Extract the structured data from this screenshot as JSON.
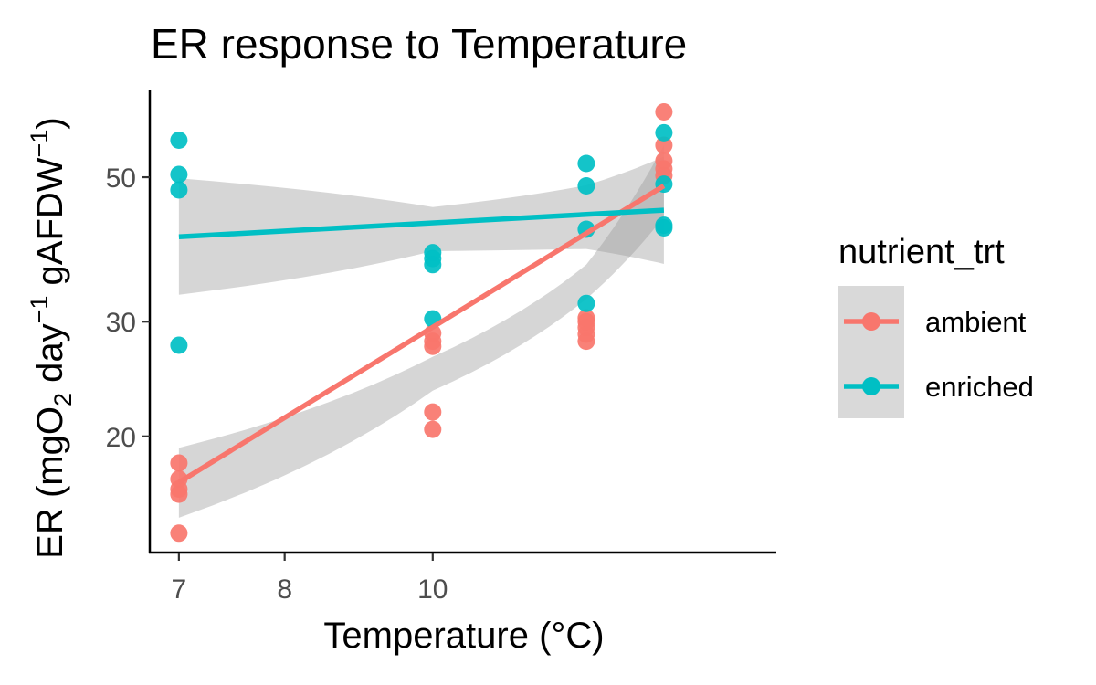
{
  "chart_data": {
    "type": "scatter",
    "title": "ER response to Temperature",
    "xlabel": "Temperature (°C)",
    "ylabel_parts": {
      "prefix": "ER (mgO",
      "sub": "2",
      "mid1": " day",
      "sup1": "−1",
      "mid2": " gAFDW",
      "sup2": "−1",
      "suffix": ")"
    },
    "x_scale": "reciprocal",
    "y_scale": "log",
    "xlim": [
      6.9,
      16.5
    ],
    "ylim": [
      12.6,
      73
    ],
    "x_ticks": [
      7,
      8,
      10
    ],
    "x_tick_labels": [
      "7",
      "8",
      "10"
    ],
    "y_ticks": [
      20,
      30,
      50
    ],
    "y_tick_labels": [
      "20",
      "30",
      "50"
    ],
    "grid": false,
    "legend": {
      "title": "nutrient_trt",
      "placement": "right",
      "entries": [
        "ambient",
        "enriched"
      ]
    },
    "series": [
      {
        "name": "ambient",
        "color": "#F8766D",
        "points": [
          [
            7,
            14.2
          ],
          [
            7,
            18.2
          ],
          [
            7,
            17.2
          ],
          [
            7,
            16.6
          ],
          [
            7,
            16.3
          ],
          [
            10,
            20.5
          ],
          [
            10,
            21.8
          ],
          [
            10,
            27.5
          ],
          [
            10,
            28.0
          ],
          [
            10,
            28.8
          ],
          [
            13.5,
            28.0
          ],
          [
            13.5,
            28.7
          ],
          [
            13.5,
            29.4
          ],
          [
            13.5,
            30.0
          ],
          [
            13.5,
            30.4
          ],
          [
            16.4,
            63.0
          ],
          [
            16.4,
            56.0
          ],
          [
            16.4,
            51.5
          ],
          [
            16.4,
            50.3
          ],
          [
            16.4,
            53.0
          ]
        ],
        "fit": {
          "x": [
            7,
            16.4
          ],
          "y": [
            17.0,
            48.5
          ]
        },
        "ci": {
          "x": [
            7,
            10,
            13.5,
            16.4
          ],
          "lower": [
            15.0,
            23.5,
            32.5,
            43.5
          ],
          "upper": [
            19.2,
            26.5,
            36.7,
            56.0
          ]
        }
      },
      {
        "name": "enriched",
        "color": "#00BFC4",
        "points": [
          [
            7,
            57.0
          ],
          [
            7,
            50.5
          ],
          [
            7,
            47.8
          ],
          [
            7,
            27.6
          ],
          [
            10,
            38.3
          ],
          [
            10,
            37.5
          ],
          [
            10,
            36.7
          ],
          [
            10,
            30.3
          ],
          [
            13.5,
            52.5
          ],
          [
            13.5,
            48.5
          ],
          [
            13.5,
            41.6
          ],
          [
            13.5,
            32.0
          ],
          [
            16.4,
            58.5
          ],
          [
            16.4,
            48.8
          ],
          [
            16.4,
            42.2
          ],
          [
            16.4,
            41.8
          ]
        ],
        "fit": {
          "x": [
            7,
            16.4
          ],
          "y": [
            40.5,
            44.5
          ]
        },
        "ci": {
          "x": [
            7,
            10,
            13.5,
            16.4
          ],
          "lower": [
            33.0,
            38.5,
            38.8,
            36.8
          ],
          "upper": [
            49.8,
            45.0,
            48.6,
            53.8
          ]
        }
      }
    ]
  }
}
